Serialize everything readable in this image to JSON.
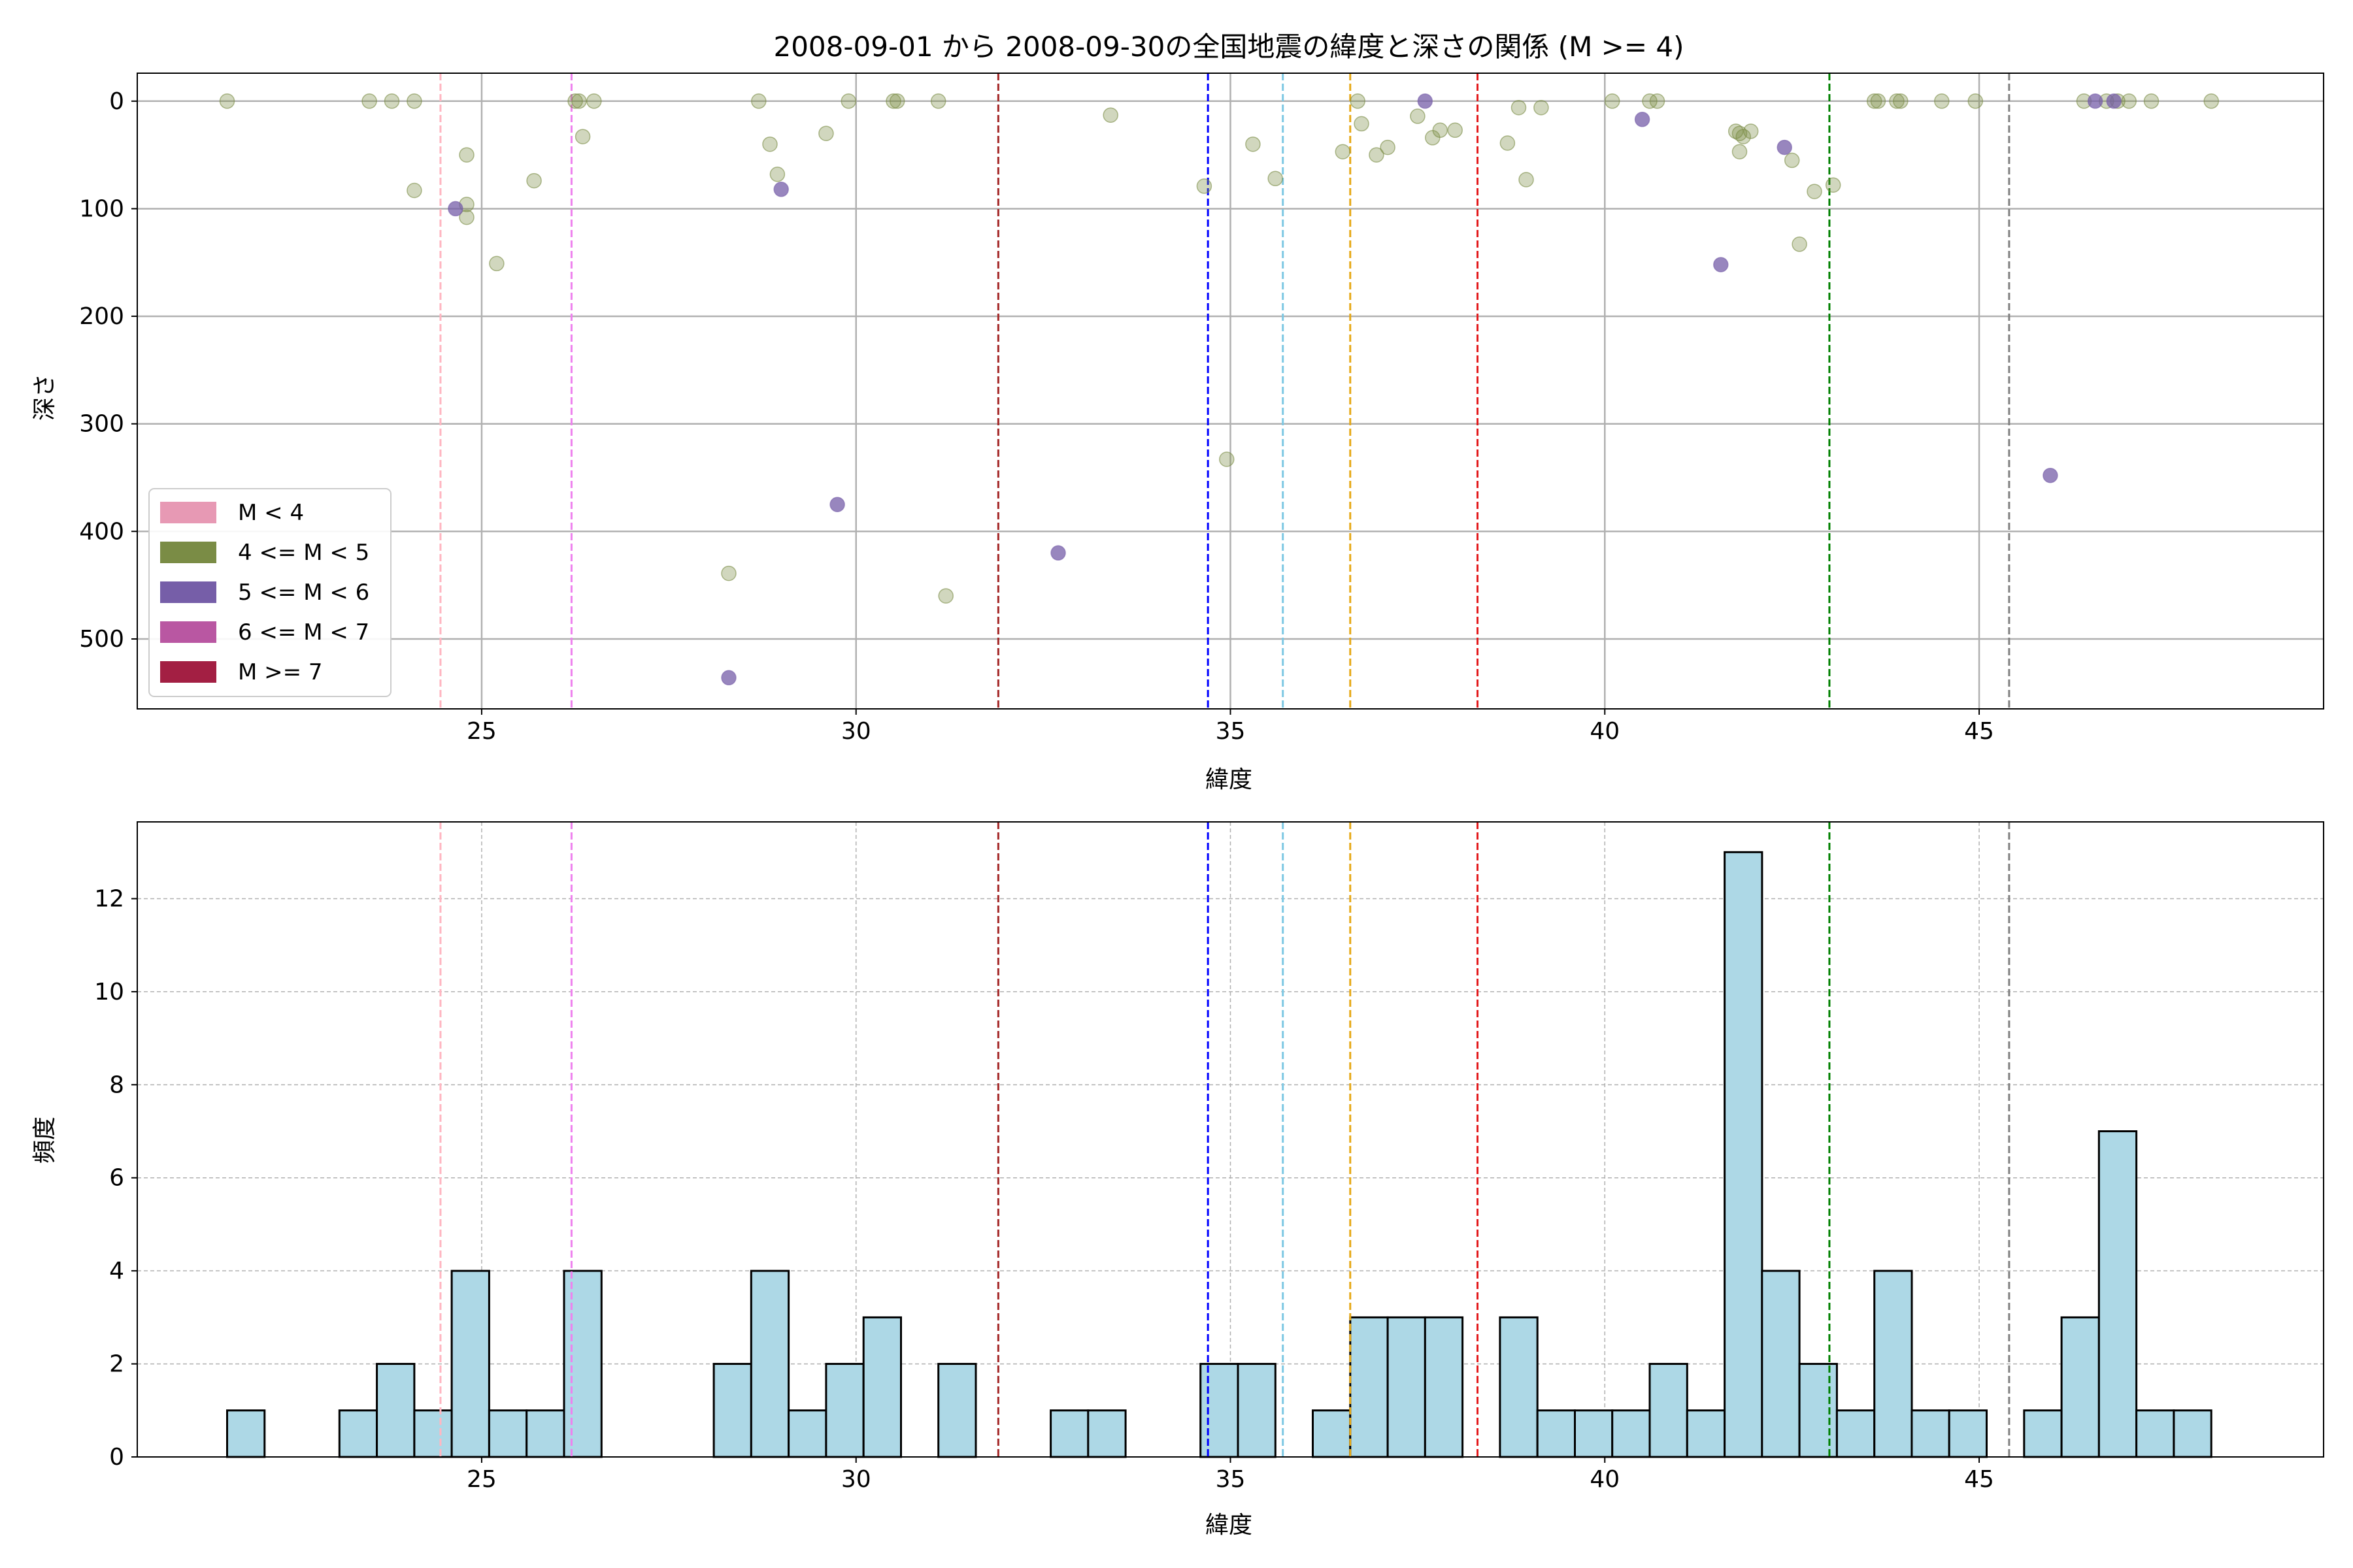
{
  "chart_data": [
    {
      "type": "scatter",
      "title": "2008-09-01 から 2008-09-30の全国地震の緯度と深さの関係 (M >= 4)",
      "xlabel": "緯度",
      "ylabel": "深さ",
      "xlim": [
        20.4,
        49.6
      ],
      "ylim": [
        565,
        -26
      ],
      "y_inverted": true,
      "grid": true,
      "legend_placement": "lower-left",
      "xticks": [
        25,
        30,
        35,
        40,
        45
      ],
      "yticks": [
        0,
        100,
        200,
        300,
        400,
        500
      ],
      "legend": [
        {
          "label": "M < 4",
          "color": "#e799b4"
        },
        {
          "label": "4 <= M < 5",
          "color": "#7a8c45"
        },
        {
          "label": "5 <= M < 6",
          "color": "#765ea8"
        },
        {
          "label": "6 <= M < 7",
          "color": "#b957a2"
        },
        {
          "label": "M >= 7",
          "color": "#a31f43"
        }
      ],
      "vlines": [
        {
          "x": 24.45,
          "color": "#ffb6c1"
        },
        {
          "x": 26.2,
          "color": "#ee82ee"
        },
        {
          "x": 31.9,
          "color": "#a52a2a"
        },
        {
          "x": 34.7,
          "color": "#0000ff"
        },
        {
          "x": 35.7,
          "color": "#7ec8e3"
        },
        {
          "x": 36.6,
          "color": "#e6a817"
        },
        {
          "x": 38.3,
          "color": "#e31a1c"
        },
        {
          "x": 43.0,
          "color": "#008000"
        },
        {
          "x": 45.4,
          "color": "#808080"
        }
      ],
      "series": [
        {
          "magnitude_class": "4 <= M < 5",
          "color": "#7a8c45",
          "points": [
            [
              21.6,
              0
            ],
            [
              23.5,
              0
            ],
            [
              23.8,
              0
            ],
            [
              24.1,
              0
            ],
            [
              24.1,
              83
            ],
            [
              24.8,
              50
            ],
            [
              24.8,
              96
            ],
            [
              24.8,
              108
            ],
            [
              25.2,
              151
            ],
            [
              25.7,
              74
            ],
            [
              26.25,
              0
            ],
            [
              26.3,
              0
            ],
            [
              26.35,
              33
            ],
            [
              26.5,
              0
            ],
            [
              28.3,
              439
            ],
            [
              28.7,
              0
            ],
            [
              28.85,
              40
            ],
            [
              28.95,
              68
            ],
            [
              29.6,
              30
            ],
            [
              29.9,
              0
            ],
            [
              30.5,
              0
            ],
            [
              30.55,
              0
            ],
            [
              31.1,
              0
            ],
            [
              31.2,
              460
            ],
            [
              33.4,
              13
            ],
            [
              34.65,
              79
            ],
            [
              34.95,
              333
            ],
            [
              35.3,
              40
            ],
            [
              35.6,
              72
            ],
            [
              36.5,
              47
            ],
            [
              36.7,
              0
            ],
            [
              36.75,
              21
            ],
            [
              36.95,
              50
            ],
            [
              37.1,
              43
            ],
            [
              37.5,
              14
            ],
            [
              37.7,
              34
            ],
            [
              37.8,
              27
            ],
            [
              38.0,
              27
            ],
            [
              38.7,
              39
            ],
            [
              38.85,
              6
            ],
            [
              38.95,
              73
            ],
            [
              39.15,
              6
            ],
            [
              40.1,
              0
            ],
            [
              40.6,
              0
            ],
            [
              40.7,
              0
            ],
            [
              41.75,
              28
            ],
            [
              41.8,
              30
            ],
            [
              41.85,
              33
            ],
            [
              41.8,
              47
            ],
            [
              41.95,
              28
            ],
            [
              42.5,
              55
            ],
            [
              42.6,
              133
            ],
            [
              42.8,
              84
            ],
            [
              43.05,
              78
            ],
            [
              43.6,
              0
            ],
            [
              43.65,
              0
            ],
            [
              43.9,
              0
            ],
            [
              43.95,
              0
            ],
            [
              44.5,
              0
            ],
            [
              44.95,
              0
            ],
            [
              46.4,
              0
            ],
            [
              46.7,
              0
            ],
            [
              46.85,
              0
            ],
            [
              47.0,
              0
            ],
            [
              47.3,
              0
            ],
            [
              48.1,
              0
            ]
          ]
        },
        {
          "magnitude_class": "5 <= M < 6",
          "color": "#765ea8",
          "points": [
            [
              24.65,
              100
            ],
            [
              28.3,
              536
            ],
            [
              29.0,
              82
            ],
            [
              29.75,
              375
            ],
            [
              32.7,
              420
            ],
            [
              37.6,
              0
            ],
            [
              40.5,
              17
            ],
            [
              41.55,
              152
            ],
            [
              42.4,
              43
            ],
            [
              45.95,
              348
            ],
            [
              46.55,
              0
            ],
            [
              46.8,
              0
            ]
          ]
        }
      ]
    },
    {
      "type": "bar",
      "title": "",
      "xlabel": "緯度",
      "ylabel": "頻度",
      "xlim": [
        20.4,
        49.6
      ],
      "ylim": [
        0,
        13.65
      ],
      "grid": true,
      "bar_color": "#add8e6",
      "bin_width": 0.5,
      "xticks": [
        25,
        30,
        35,
        40,
        45
      ],
      "yticks": [
        0,
        2,
        4,
        6,
        8,
        10,
        12
      ],
      "bin_starts": [
        21.6,
        22.1,
        22.6,
        23.1,
        23.6,
        24.1,
        24.6,
        25.1,
        25.6,
        26.1,
        26.6,
        27.1,
        27.6,
        28.1,
        28.6,
        29.1,
        29.6,
        30.1,
        30.6,
        31.1,
        31.6,
        32.1,
        32.6,
        33.1,
        33.6,
        34.1,
        34.6,
        35.1,
        35.6,
        36.1,
        36.6,
        37.1,
        37.6,
        38.1,
        38.6,
        39.1,
        39.6,
        40.1,
        40.6,
        41.1,
        41.6,
        42.1,
        42.6,
        43.1,
        43.6,
        44.1,
        44.6,
        45.1,
        45.6,
        46.1,
        46.6,
        47.1,
        47.6
      ],
      "values": [
        1,
        0,
        0,
        1,
        2,
        1,
        4,
        1,
        1,
        4,
        0,
        0,
        0,
        2,
        4,
        1,
        2,
        3,
        0,
        2,
        0,
        0,
        1,
        1,
        0,
        0,
        2,
        2,
        0,
        1,
        3,
        3,
        3,
        0,
        3,
        1,
        1,
        1,
        2,
        1,
        13,
        4,
        2,
        1,
        4,
        1,
        1,
        0,
        1,
        3,
        7,
        1,
        1
      ],
      "vlines": [
        {
          "x": 24.45,
          "color": "#ffb6c1"
        },
        {
          "x": 26.2,
          "color": "#ee82ee"
        },
        {
          "x": 31.9,
          "color": "#a52a2a"
        },
        {
          "x": 34.7,
          "color": "#0000ff"
        },
        {
          "x": 35.7,
          "color": "#7ec8e3"
        },
        {
          "x": 36.6,
          "color": "#e6a817"
        },
        {
          "x": 38.3,
          "color": "#e31a1c"
        },
        {
          "x": 43.0,
          "color": "#008000"
        },
        {
          "x": 45.4,
          "color": "#808080"
        }
      ]
    }
  ]
}
